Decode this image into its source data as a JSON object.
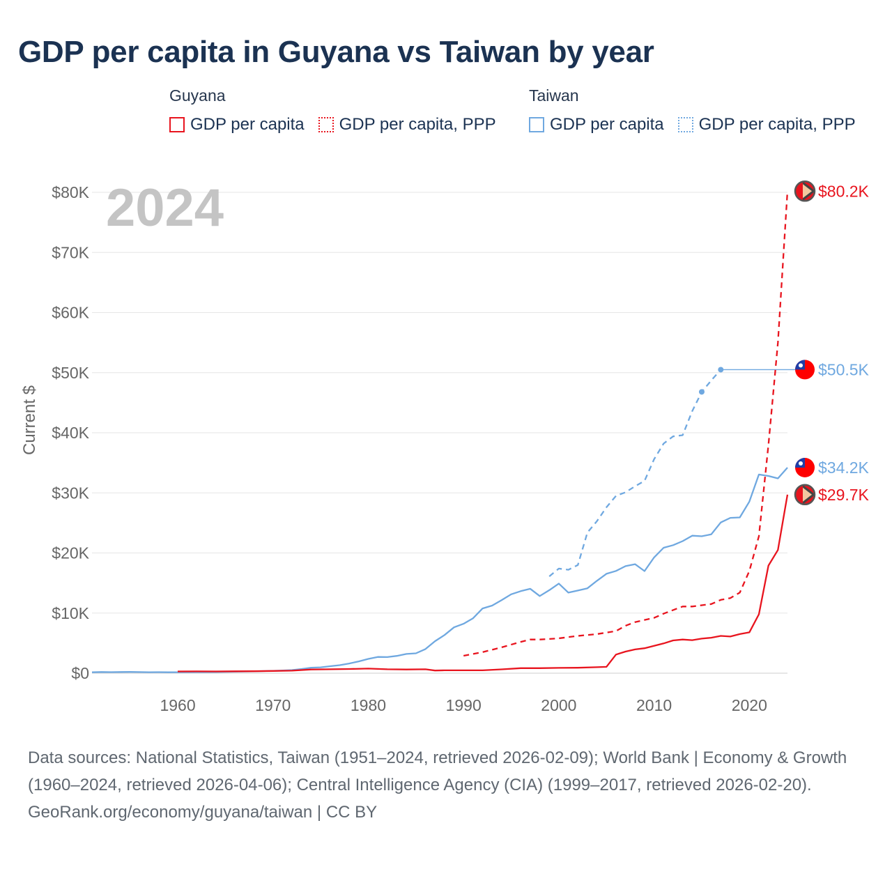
{
  "title": "GDP per capita in Guyana vs Taiwan by year",
  "legend": {
    "guyana": {
      "label": "Guyana",
      "items": [
        "GDP per capita",
        "GDP per capita, PPP"
      ]
    },
    "taiwan": {
      "label": "Taiwan",
      "items": [
        "GDP per capita",
        "GDP per capita, PPP"
      ]
    }
  },
  "colors": {
    "guyana": "#e8141e",
    "taiwan": "#6fa8e0",
    "grid": "#e6e6e6",
    "text": "#666666",
    "year": "#c4c4c4"
  },
  "footer": {
    "sources": "Data sources: National Statistics, Taiwan (1951–2024, retrieved 2026-02-09); World Bank | Economy & Growth (1960–2024, retrieved 2026-04-06); Central Intelligence Agency (CIA) (1999–2017, retrieved 2026-02-20).",
    "credit": "GeoRank.org/economy/guyana/taiwan | CC BY"
  },
  "chart_data": {
    "type": "line",
    "year_label": "2024",
    "ylabel": "Current $",
    "xlim": [
      1951,
      2024
    ],
    "ylim": [
      0,
      80000
    ],
    "x_ticks": [
      1960,
      1970,
      1980,
      1990,
      2000,
      2010,
      2020
    ],
    "y_ticks": [
      {
        "v": 0,
        "label": "$0"
      },
      {
        "v": 10000,
        "label": "$10K"
      },
      {
        "v": 20000,
        "label": "$20K"
      },
      {
        "v": 30000,
        "label": "$30K"
      },
      {
        "v": 40000,
        "label": "$40K"
      },
      {
        "v": 50000,
        "label": "$50K"
      },
      {
        "v": 60000,
        "label": "$60K"
      },
      {
        "v": 70000,
        "label": "$70K"
      },
      {
        "v": 80000,
        "label": "$80K"
      }
    ],
    "series": [
      {
        "name": "Taiwan GDP per capita",
        "country": "taiwan",
        "dashed": false,
        "end_label": "$34.2K",
        "points": [
          [
            1951,
            150
          ],
          [
            1952,
            200
          ],
          [
            1953,
            170
          ],
          [
            1954,
            200
          ],
          [
            1955,
            210
          ],
          [
            1956,
            180
          ],
          [
            1957,
            160
          ],
          [
            1958,
            170
          ],
          [
            1959,
            150
          ],
          [
            1960,
            160
          ],
          [
            1962,
            170
          ],
          [
            1964,
            200
          ],
          [
            1966,
            250
          ],
          [
            1968,
            310
          ],
          [
            1970,
            390
          ],
          [
            1971,
            440
          ],
          [
            1972,
            520
          ],
          [
            1973,
            690
          ],
          [
            1974,
            920
          ],
          [
            1975,
            970
          ],
          [
            1976,
            1160
          ],
          [
            1977,
            1330
          ],
          [
            1978,
            1610
          ],
          [
            1979,
            1960
          ],
          [
            1980,
            2380
          ],
          [
            1981,
            2700
          ],
          [
            1982,
            2680
          ],
          [
            1983,
            2880
          ],
          [
            1984,
            3200
          ],
          [
            1985,
            3300
          ],
          [
            1986,
            4010
          ],
          [
            1987,
            5320
          ],
          [
            1988,
            6340
          ],
          [
            1989,
            7630
          ],
          [
            1990,
            8220
          ],
          [
            1991,
            9140
          ],
          [
            1992,
            10770
          ],
          [
            1993,
            11250
          ],
          [
            1994,
            12160
          ],
          [
            1995,
            13130
          ],
          [
            1996,
            13650
          ],
          [
            1997,
            14040
          ],
          [
            1998,
            12840
          ],
          [
            1999,
            13810
          ],
          [
            2000,
            14910
          ],
          [
            2001,
            13400
          ],
          [
            2002,
            13750
          ],
          [
            2003,
            14120
          ],
          [
            2004,
            15370
          ],
          [
            2005,
            16530
          ],
          [
            2006,
            17010
          ],
          [
            2007,
            17810
          ],
          [
            2008,
            18130
          ],
          [
            2009,
            16990
          ],
          [
            2010,
            19260
          ],
          [
            2011,
            20870
          ],
          [
            2012,
            21300
          ],
          [
            2013,
            21970
          ],
          [
            2014,
            22870
          ],
          [
            2015,
            22780
          ],
          [
            2016,
            23090
          ],
          [
            2017,
            25080
          ],
          [
            2018,
            25840
          ],
          [
            2019,
            25910
          ],
          [
            2020,
            28550
          ],
          [
            2021,
            33060
          ],
          [
            2022,
            32810
          ],
          [
            2023,
            32400
          ],
          [
            2024,
            34200
          ]
        ]
      },
      {
        "name": "Taiwan GDP per capita, PPP",
        "country": "taiwan",
        "dashed": true,
        "end_label": "$50.5K",
        "points": [
          [
            1999,
            16100
          ],
          [
            2000,
            17400
          ],
          [
            2001,
            17200
          ],
          [
            2002,
            18000
          ],
          [
            2003,
            23400
          ],
          [
            2004,
            25300
          ],
          [
            2005,
            27600
          ],
          [
            2006,
            29500
          ],
          [
            2007,
            30100
          ],
          [
            2008,
            31100
          ],
          [
            2009,
            32000
          ],
          [
            2010,
            35600
          ],
          [
            2011,
            38200
          ],
          [
            2012,
            39400
          ],
          [
            2013,
            39600
          ],
          [
            2014,
            43600
          ],
          [
            2015,
            46800
          ],
          [
            2016,
            48700
          ],
          [
            2017,
            50500
          ]
        ],
        "markers": [
          2015,
          2017
        ],
        "extend_to": 2024
      },
      {
        "name": "Guyana GDP per capita",
        "country": "guyana",
        "dashed": false,
        "end_label": "$29.7K",
        "points": [
          [
            1960,
            290
          ],
          [
            1962,
            300
          ],
          [
            1964,
            290
          ],
          [
            1966,
            310
          ],
          [
            1968,
            330
          ],
          [
            1970,
            370
          ],
          [
            1972,
            420
          ],
          [
            1974,
            620
          ],
          [
            1976,
            650
          ],
          [
            1978,
            700
          ],
          [
            1980,
            760
          ],
          [
            1982,
            650
          ],
          [
            1984,
            610
          ],
          [
            1986,
            650
          ],
          [
            1987,
            440
          ],
          [
            1988,
            480
          ],
          [
            1990,
            480
          ],
          [
            1992,
            470
          ],
          [
            1994,
            640
          ],
          [
            1996,
            830
          ],
          [
            1998,
            840
          ],
          [
            2000,
            880
          ],
          [
            2002,
            900
          ],
          [
            2004,
            1000
          ],
          [
            2005,
            1050
          ],
          [
            2006,
            3100
          ],
          [
            2007,
            3600
          ],
          [
            2008,
            3950
          ],
          [
            2009,
            4150
          ],
          [
            2010,
            4550
          ],
          [
            2011,
            4950
          ],
          [
            2012,
            5450
          ],
          [
            2013,
            5600
          ],
          [
            2014,
            5500
          ],
          [
            2015,
            5750
          ],
          [
            2016,
            5900
          ],
          [
            2017,
            6200
          ],
          [
            2018,
            6100
          ],
          [
            2019,
            6500
          ],
          [
            2020,
            6800
          ],
          [
            2021,
            9800
          ],
          [
            2022,
            17900
          ],
          [
            2023,
            20500
          ],
          [
            2024,
            29700
          ]
        ]
      },
      {
        "name": "Guyana GDP per capita, PPP",
        "country": "guyana",
        "dashed": true,
        "end_label": "$80.2K",
        "points": [
          [
            1990,
            2900
          ],
          [
            1992,
            3500
          ],
          [
            1994,
            4300
          ],
          [
            1996,
            5200
          ],
          [
            1997,
            5600
          ],
          [
            1998,
            5600
          ],
          [
            2000,
            5800
          ],
          [
            2002,
            6200
          ],
          [
            2004,
            6500
          ],
          [
            2006,
            7000
          ],
          [
            2007,
            7900
          ],
          [
            2008,
            8500
          ],
          [
            2010,
            9200
          ],
          [
            2011,
            9900
          ],
          [
            2012,
            10500
          ],
          [
            2013,
            11100
          ],
          [
            2014,
            11100
          ],
          [
            2015,
            11300
          ],
          [
            2016,
            11500
          ],
          [
            2017,
            12200
          ],
          [
            2018,
            12500
          ],
          [
            2019,
            13400
          ],
          [
            2020,
            17000
          ],
          [
            2021,
            22800
          ],
          [
            2022,
            38000
          ],
          [
            2023,
            55000
          ],
          [
            2024,
            80200
          ]
        ]
      }
    ]
  }
}
